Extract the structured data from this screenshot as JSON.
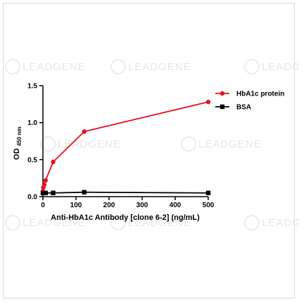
{
  "watermark": {
    "text": "LEADGENE"
  },
  "chart_data": {
    "type": "line",
    "xlabel": "Anti-HbA1c Antibody [clone 6-2] (ng/mL)",
    "ylabel": "OD",
    "ylabel_sub": "450 nm",
    "xlim": [
      0,
      500
    ],
    "ylim": [
      0,
      1.5
    ],
    "xticks": [
      0,
      100,
      200,
      300,
      400,
      500
    ],
    "yticks": [
      0.0,
      0.5,
      1.0,
      1.5
    ],
    "ytick_labels": [
      "0.0",
      "0.5",
      "1.0",
      "1.5"
    ],
    "grid": false,
    "legend_position": "top-right",
    "series": [
      {
        "name": "HbA1c protein",
        "color": "#e8101c",
        "marker": "circle",
        "points": [
          {
            "x": 0,
            "y": 0.07
          },
          {
            "x": 1,
            "y": 0.12
          },
          {
            "x": 4,
            "y": 0.16
          },
          {
            "x": 8,
            "y": 0.22
          },
          {
            "x": 31,
            "y": 0.47
          },
          {
            "x": 125,
            "y": 0.88
          },
          {
            "x": 500,
            "y": 1.28
          }
        ]
      },
      {
        "name": "BSA",
        "color": "#000000",
        "marker": "square",
        "points": [
          {
            "x": 0,
            "y": 0.05
          },
          {
            "x": 1,
            "y": 0.05
          },
          {
            "x": 4,
            "y": 0.05
          },
          {
            "x": 8,
            "y": 0.05
          },
          {
            "x": 31,
            "y": 0.05
          },
          {
            "x": 125,
            "y": 0.06
          },
          {
            "x": 500,
            "y": 0.05
          }
        ]
      }
    ]
  }
}
